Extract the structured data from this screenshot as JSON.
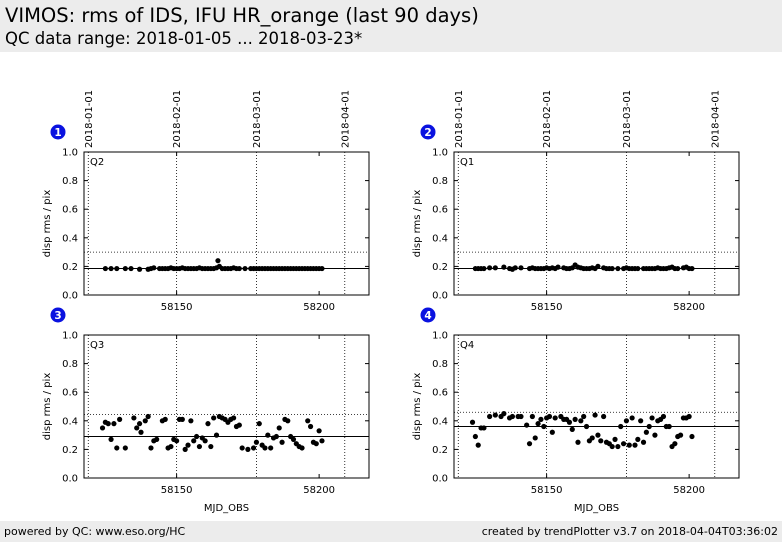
{
  "header": {
    "title": "VIMOS: rms of IDS, IFU HR_orange (last 90 days)",
    "subtitle": "QC data range: 2018-01-05 ... 2018-03-23*"
  },
  "footer": {
    "left": "powered by QC: www.eso.org/HC",
    "right": "created by trendPlotter v3.7 on 2018-04-04T03:36:02"
  },
  "chart_data": [
    {
      "type": "scatter",
      "panel_number": "1",
      "label": "Q2",
      "xlabel": "",
      "ylabel": "disp rms / pix",
      "xlim": [
        58117.5,
        58217.5
      ],
      "ylim": [
        0,
        1.0
      ],
      "xticks": [
        58150,
        58200
      ],
      "yticks": [
        0.0,
        0.2,
        0.4,
        0.6,
        0.8,
        1.0
      ],
      "date_ticks": [
        {
          "x": 58119,
          "label": "2018-01-01"
        },
        {
          "x": 58150,
          "label": "2018-02-01"
        },
        {
          "x": 58178,
          "label": "2018-03-01"
        },
        {
          "x": 58209,
          "label": "2018-04-01"
        }
      ],
      "solid_line": 0.185,
      "dotted_line": 0.3,
      "x": [
        58125,
        58127,
        58129,
        58132,
        58134,
        58137,
        58140,
        58141,
        58142,
        58144,
        58145,
        58146,
        58147,
        58148,
        58149,
        58150,
        58151,
        58152,
        58153,
        58154,
        58155,
        58156,
        58157,
        58158,
        58159,
        58160,
        58161,
        58162,
        58163,
        58164,
        58164.5,
        58165,
        58166,
        58167,
        58168,
        58169,
        58170,
        58171,
        58172,
        58174,
        58176,
        58177,
        58178,
        58179,
        58180,
        58181,
        58182,
        58183,
        58184,
        58185,
        58186,
        58187,
        58188,
        58189,
        58190,
        58191,
        58192,
        58193,
        58194,
        58195,
        58196,
        58197,
        58198,
        58199,
        58200,
        58201
      ],
      "y": [
        0.185,
        0.185,
        0.185,
        0.185,
        0.185,
        0.18,
        0.18,
        0.185,
        0.19,
        0.185,
        0.185,
        0.185,
        0.185,
        0.19,
        0.185,
        0.185,
        0.185,
        0.19,
        0.185,
        0.185,
        0.185,
        0.185,
        0.185,
        0.19,
        0.185,
        0.185,
        0.185,
        0.185,
        0.185,
        0.19,
        0.24,
        0.2,
        0.185,
        0.185,
        0.185,
        0.185,
        0.19,
        0.185,
        0.185,
        0.185,
        0.185,
        0.185,
        0.185,
        0.185,
        0.185,
        0.185,
        0.185,
        0.185,
        0.185,
        0.185,
        0.185,
        0.185,
        0.185,
        0.185,
        0.185,
        0.185,
        0.185,
        0.185,
        0.185,
        0.185,
        0.185,
        0.185,
        0.185,
        0.185,
        0.185,
        0.185
      ]
    },
    {
      "type": "scatter",
      "panel_number": "2",
      "label": "Q1",
      "xlabel": "",
      "ylabel": "disp rms / pix",
      "xlim": [
        58117.5,
        58217.5
      ],
      "ylim": [
        0,
        1.0
      ],
      "xticks": [
        58150,
        58200
      ],
      "yticks": [
        0.0,
        0.2,
        0.4,
        0.6,
        0.8,
        1.0
      ],
      "date_ticks": [
        {
          "x": 58119,
          "label": "2018-01-01"
        },
        {
          "x": 58150,
          "label": "2018-02-01"
        },
        {
          "x": 58178,
          "label": "2018-03-01"
        },
        {
          "x": 58209,
          "label": "2018-04-01"
        }
      ],
      "solid_line": 0.185,
      "dotted_line": 0.3,
      "x": [
        58125,
        58126,
        58127,
        58128,
        58130,
        58132,
        58135,
        58137,
        58138,
        58139,
        58141,
        58144,
        58145,
        58146,
        58147,
        58148,
        58149,
        58150,
        58151,
        58152,
        58153,
        58154,
        58156,
        58157,
        58158,
        58159,
        58160,
        58161,
        58162,
        58163,
        58164,
        58165,
        58166,
        58167,
        58168,
        58170,
        58171,
        58172,
        58173,
        58175,
        58177,
        58178,
        58179,
        58180,
        58181,
        58182,
        58184,
        58185,
        58186,
        58187,
        58188,
        58189,
        58190,
        58191,
        58192,
        58193,
        58194,
        58195,
        58196,
        58198,
        58199,
        58200,
        58201
      ],
      "y": [
        0.185,
        0.185,
        0.185,
        0.185,
        0.19,
        0.19,
        0.195,
        0.185,
        0.18,
        0.19,
        0.19,
        0.185,
        0.19,
        0.185,
        0.185,
        0.185,
        0.185,
        0.19,
        0.185,
        0.19,
        0.185,
        0.195,
        0.19,
        0.185,
        0.185,
        0.19,
        0.21,
        0.195,
        0.19,
        0.185,
        0.185,
        0.185,
        0.19,
        0.185,
        0.2,
        0.19,
        0.185,
        0.185,
        0.185,
        0.185,
        0.185,
        0.19,
        0.185,
        0.185,
        0.185,
        0.185,
        0.185,
        0.185,
        0.185,
        0.185,
        0.185,
        0.19,
        0.185,
        0.185,
        0.185,
        0.19,
        0.195,
        0.185,
        0.185,
        0.19,
        0.195,
        0.185,
        0.185
      ]
    },
    {
      "type": "scatter",
      "panel_number": "3",
      "label": "Q3",
      "xlabel": "MJD_OBS",
      "ylabel": "disp rms / pix",
      "xlim": [
        58117.5,
        58217.5
      ],
      "ylim": [
        0,
        1.0
      ],
      "xticks": [
        58150,
        58200
      ],
      "yticks": [
        0.0,
        0.2,
        0.4,
        0.6,
        0.8,
        1.0
      ],
      "date_ticks": [
        {
          "x": 58119,
          "label": "2018-01-01"
        },
        {
          "x": 58150,
          "label": "2018-02-01"
        },
        {
          "x": 58178,
          "label": "2018-03-01"
        },
        {
          "x": 58209,
          "label": "2018-04-01"
        }
      ],
      "solid_line": 0.29,
      "dotted_line": 0.445,
      "x": [
        58124,
        58125,
        58126,
        58127,
        58128,
        58129,
        58130,
        58132,
        58135,
        58136,
        58137,
        58137.5,
        58139,
        58140,
        58141,
        58142,
        58143,
        58145,
        58146,
        58147,
        58148,
        58149,
        58150,
        58151,
        58152,
        58153,
        58154,
        58155,
        58156,
        58157,
        58158,
        58159,
        58160,
        58161,
        58162,
        58163,
        58164,
        58165,
        58166,
        58167,
        58168,
        58169,
        58170,
        58171,
        58172,
        58173,
        58175,
        58177,
        58178,
        58179,
        58180,
        58181,
        58182,
        58183,
        58184,
        58185,
        58186,
        58187,
        58188,
        58189,
        58190,
        58191,
        58192,
        58193,
        58194,
        58196,
        58197,
        58198,
        58199,
        58200,
        58201
      ],
      "y": [
        0.35,
        0.39,
        0.38,
        0.27,
        0.38,
        0.21,
        0.41,
        0.21,
        0.42,
        0.35,
        0.38,
        0.32,
        0.4,
        0.43,
        0.21,
        0.26,
        0.27,
        0.4,
        0.41,
        0.21,
        0.22,
        0.27,
        0.26,
        0.41,
        0.41,
        0.2,
        0.23,
        0.4,
        0.26,
        0.29,
        0.22,
        0.28,
        0.26,
        0.38,
        0.22,
        0.42,
        0.3,
        0.43,
        0.42,
        0.41,
        0.39,
        0.41,
        0.42,
        0.36,
        0.37,
        0.21,
        0.2,
        0.21,
        0.25,
        0.38,
        0.23,
        0.21,
        0.3,
        0.21,
        0.28,
        0.29,
        0.35,
        0.25,
        0.41,
        0.4,
        0.29,
        0.27,
        0.24,
        0.22,
        0.21,
        0.4,
        0.36,
        0.25,
        0.24,
        0.33,
        0.26
      ]
    },
    {
      "type": "scatter",
      "panel_number": "4",
      "label": "Q4",
      "xlabel": "MJD_OBS",
      "ylabel": "disp rms / pix",
      "xlim": [
        58117.5,
        58217.5
      ],
      "ylim": [
        0,
        1.0
      ],
      "xticks": [
        58150,
        58200
      ],
      "yticks": [
        0.0,
        0.2,
        0.4,
        0.6,
        0.8,
        1.0
      ],
      "date_ticks": [
        {
          "x": 58119,
          "label": "2018-01-01"
        },
        {
          "x": 58150,
          "label": "2018-02-01"
        },
        {
          "x": 58178,
          "label": "2018-03-01"
        },
        {
          "x": 58209,
          "label": "2018-04-01"
        }
      ],
      "solid_line": 0.36,
      "dotted_line": 0.46,
      "x": [
        58124,
        58125,
        58126,
        58127,
        58128,
        58130,
        58132,
        58134,
        58135,
        58137,
        58138,
        58140,
        58141,
        58143,
        58144,
        58145,
        58146,
        58147,
        58148,
        58149,
        58150,
        58151,
        58152,
        58153,
        58155,
        58156,
        58157,
        58158,
        58159,
        58160,
        58161,
        58162,
        58163,
        58164,
        58165,
        58166,
        58167,
        58168,
        58169,
        58170,
        58171,
        58172,
        58173,
        58174,
        58175,
        58176,
        58177,
        58178,
        58179,
        58180,
        58181,
        58182,
        58183,
        58184,
        58185,
        58186,
        58187,
        58188,
        58189,
        58190,
        58191,
        58192,
        58193,
        58194,
        58195,
        58196,
        58197,
        58198,
        58199,
        58200,
        58201
      ],
      "y": [
        0.39,
        0.29,
        0.23,
        0.35,
        0.35,
        0.43,
        0.44,
        0.43,
        0.45,
        0.42,
        0.43,
        0.43,
        0.43,
        0.37,
        0.24,
        0.43,
        0.28,
        0.38,
        0.41,
        0.36,
        0.42,
        0.43,
        0.32,
        0.42,
        0.43,
        0.41,
        0.41,
        0.39,
        0.34,
        0.41,
        0.25,
        0.4,
        0.43,
        0.36,
        0.26,
        0.28,
        0.44,
        0.3,
        0.26,
        0.43,
        0.25,
        0.24,
        0.22,
        0.27,
        0.22,
        0.36,
        0.24,
        0.4,
        0.23,
        0.42,
        0.23,
        0.27,
        0.4,
        0.25,
        0.32,
        0.36,
        0.42,
        0.3,
        0.4,
        0.41,
        0.43,
        0.36,
        0.36,
        0.22,
        0.24,
        0.29,
        0.3,
        0.42,
        0.42,
        0.43,
        0.29
      ]
    }
  ]
}
